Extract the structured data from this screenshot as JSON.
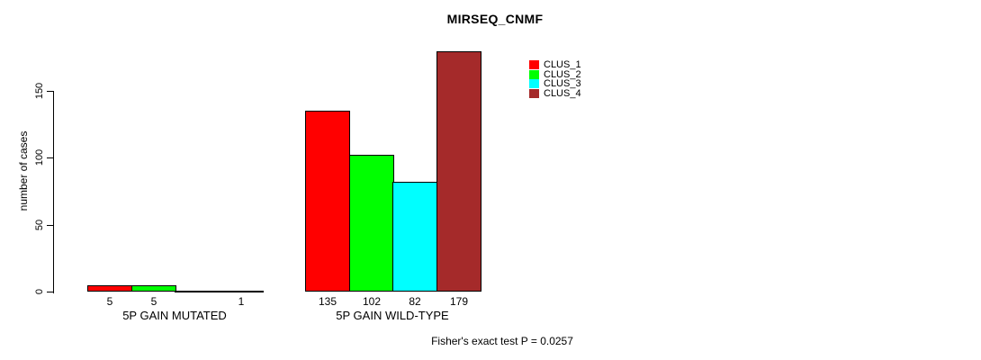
{
  "figure": {
    "title": "MIRSEQ_CNMF",
    "annotation": "Fisher's exact test P = 0.0257"
  },
  "chart_data": {
    "type": "bar",
    "title": "MIRSEQ_CNMF",
    "xlabel": "",
    "ylabel": "number of cases",
    "groups": [
      "5P GAIN MUTATED",
      "5P GAIN WILD-TYPE"
    ],
    "series": [
      {
        "name": "CLUS_1",
        "color": "#FF0000",
        "values": [
          5,
          135
        ]
      },
      {
        "name": "CLUS_2",
        "color": "#00FF00",
        "values": [
          5,
          102
        ]
      },
      {
        "name": "CLUS_3",
        "color": "#00FFFF",
        "values": [
          0,
          82
        ]
      },
      {
        "name": "CLUS_4",
        "color": "#A52A2A",
        "values": [
          1,
          179
        ]
      }
    ],
    "bar_value_labels": [
      [
        "5",
        "5",
        "",
        "1"
      ],
      [
        "135",
        "102",
        "82",
        "179"
      ]
    ],
    "yticks": [
      0,
      50,
      100,
      150
    ],
    "ytick_labels": [
      "0",
      "50",
      "100",
      "150"
    ],
    "ylim": [
      0,
      185
    ],
    "grid": false,
    "legend": {
      "position": "top-right",
      "entries": [
        "CLUS_1",
        "CLUS_2",
        "CLUS_3",
        "CLUS_4"
      ]
    },
    "annotation": "Fisher's exact test P = 0.0257"
  }
}
